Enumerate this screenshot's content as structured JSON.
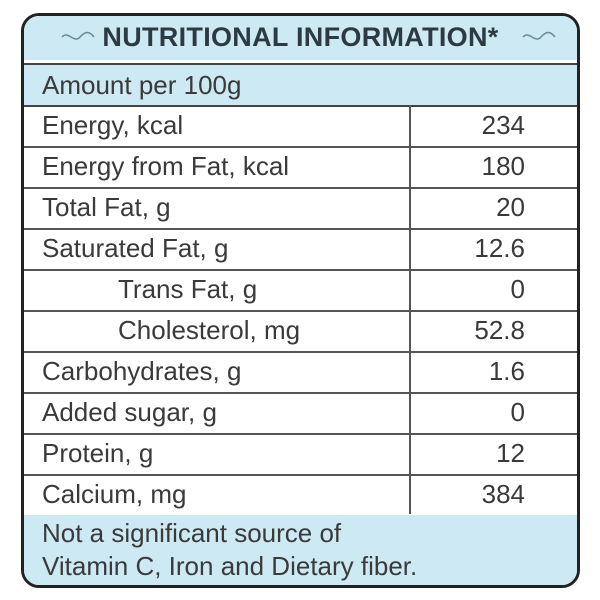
{
  "header": {
    "title": "NUTRITIONAL INFORMATION*"
  },
  "amount": "Amount per 100g",
  "table": {
    "rows": [
      [
        "Energy, kcal",
        "234"
      ],
      [
        "Energy from Fat, kcal",
        "180"
      ],
      [
        "Total Fat, g",
        "20"
      ],
      [
        "Saturated Fat, g",
        "12.6"
      ],
      [
        "Trans Fat, g",
        "0"
      ],
      [
        "Cholesterol, mg",
        "52.8"
      ],
      [
        "Carbohydrates, g",
        "1.6"
      ],
      [
        "Added sugar, g",
        "0"
      ],
      [
        "Protein, g",
        "12"
      ],
      [
        "Calcium, mg",
        "384"
      ]
    ]
  },
  "footer": {
    "lines": [
      "Not a significant source of",
      "Vitamin C, Iron and Dietary fiber."
    ]
  }
}
